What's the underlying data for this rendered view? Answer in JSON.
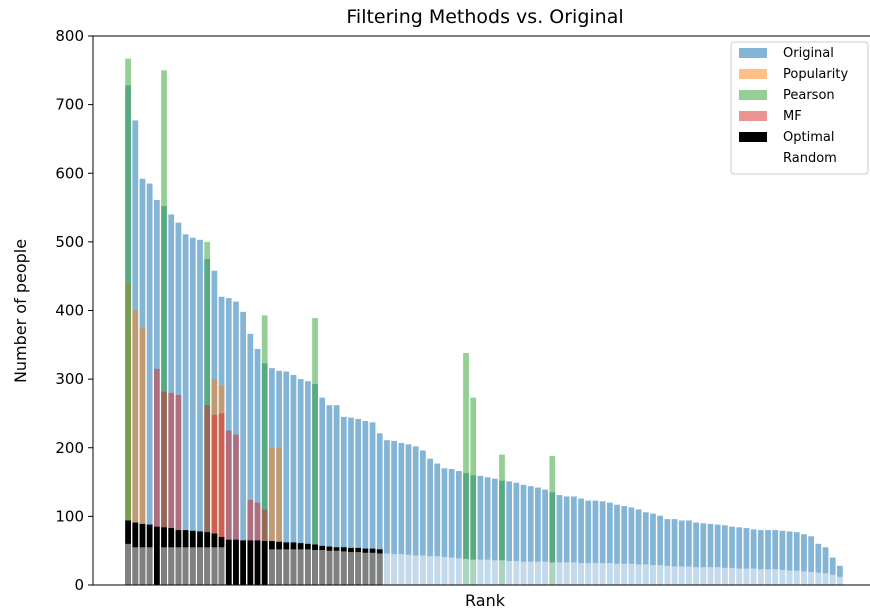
{
  "chart_data": {
    "type": "bar",
    "title": "Filtering Methods vs. Original",
    "xlabel": "Rank",
    "ylabel": "Number of people",
    "ylim": [
      0,
      800
    ],
    "yticks": [
      0,
      100,
      200,
      300,
      400,
      500,
      600,
      700,
      800
    ],
    "x_tick_labels": false,
    "grid": false,
    "legend": "top-right",
    "series": [
      {
        "name": "Original",
        "color": "#1f77b4",
        "opacity": 0.55,
        "values": [
          728,
          677,
          592,
          585,
          561,
          552,
          540,
          528,
          511,
          506,
          503,
          475,
          458,
          420,
          418,
          413,
          398,
          366,
          344,
          323,
          316,
          312,
          311,
          306,
          300,
          297,
          293,
          273,
          262,
          262,
          245,
          244,
          242,
          239,
          237,
          221,
          211,
          210,
          207,
          205,
          202,
          196,
          184,
          177,
          170,
          169,
          166,
          163,
          160,
          159,
          157,
          155,
          152,
          151,
          149,
          146,
          144,
          142,
          139,
          135,
          131,
          129,
          129,
          126,
          123,
          123,
          122,
          120,
          117,
          115,
          113,
          110,
          106,
          104,
          101,
          96,
          96,
          94,
          94,
          91,
          90,
          89,
          88,
          87,
          85,
          84,
          83,
          81,
          80,
          80,
          80,
          79,
          78,
          77,
          74,
          71,
          60,
          55,
          40,
          28
        ]
      },
      {
        "name": "Popularity",
        "color": "#ff7f0e",
        "opacity": 0.5,
        "values": [
          440,
          400,
          375,
          0,
          0,
          0,
          0,
          0,
          0,
          0,
          0,
          0,
          300,
          290,
          0,
          0,
          0,
          0,
          0,
          0,
          200,
          200,
          0,
          0,
          0,
          0,
          0,
          0,
          0,
          0,
          0,
          0,
          0,
          0,
          0,
          0,
          0,
          0,
          0,
          0,
          0,
          0,
          0,
          0,
          0,
          0,
          0,
          0,
          0,
          0,
          0,
          0,
          0,
          0,
          0,
          0,
          0,
          0,
          0,
          0,
          0,
          0,
          0,
          0,
          0,
          0,
          0,
          0,
          0,
          0,
          0,
          0,
          0,
          0,
          0,
          0,
          0,
          0,
          0,
          0,
          0,
          0,
          0,
          0,
          0,
          0,
          0,
          0,
          0,
          0,
          0,
          0,
          0,
          0,
          0,
          0,
          0,
          0,
          0,
          0
        ]
      },
      {
        "name": "Pearson",
        "color": "#2ca02c",
        "opacity": 0.5,
        "values": [
          767,
          0,
          0,
          0,
          0,
          750,
          0,
          0,
          0,
          0,
          0,
          500,
          0,
          0,
          0,
          0,
          0,
          0,
          0,
          393,
          0,
          0,
          0,
          0,
          0,
          0,
          389,
          0,
          0,
          0,
          0,
          0,
          0,
          0,
          0,
          0,
          0,
          0,
          0,
          0,
          0,
          0,
          0,
          0,
          0,
          0,
          0,
          338,
          273,
          0,
          0,
          0,
          190,
          0,
          0,
          0,
          0,
          0,
          0,
          188,
          0,
          0,
          0,
          0,
          0,
          0,
          0,
          0,
          0,
          0,
          0,
          0,
          0,
          0,
          0,
          0,
          0,
          0,
          0,
          0,
          0,
          0,
          0,
          0,
          0,
          0,
          0,
          0,
          0,
          0,
          0,
          0,
          0,
          0,
          0,
          0,
          0,
          0,
          0,
          0
        ]
      },
      {
        "name": "MF",
        "color": "#d62728",
        "opacity": 0.5,
        "values": [
          0,
          0,
          0,
          0,
          315,
          282,
          280,
          277,
          0,
          0,
          0,
          262,
          248,
          250,
          225,
          219,
          0,
          124,
          120,
          110,
          0,
          0,
          0,
          0,
          0,
          0,
          0,
          0,
          0,
          0,
          0,
          0,
          0,
          0,
          0,
          0,
          0,
          0,
          0,
          0,
          0,
          0,
          0,
          0,
          0,
          0,
          0,
          0,
          0,
          0,
          0,
          0,
          0,
          0,
          0,
          0,
          0,
          0,
          0,
          0,
          0,
          0,
          0,
          0,
          0,
          0,
          0,
          0,
          0,
          0,
          0,
          0,
          0,
          0,
          0,
          0,
          0,
          0,
          0,
          0,
          0,
          0,
          0,
          0,
          0,
          0,
          0,
          0,
          0,
          0,
          0,
          0,
          0,
          0,
          0,
          0,
          0,
          0,
          0,
          0
        ]
      },
      {
        "name": "Optimal",
        "color": "#000000",
        "opacity": 1.0,
        "values": [
          94,
          91,
          89,
          88,
          85,
          84,
          83,
          80,
          80,
          79,
          78,
          77,
          75,
          70,
          66,
          66,
          65,
          65,
          65,
          64,
          64,
          63,
          62,
          62,
          61,
          60,
          59,
          57,
          56,
          55,
          55,
          54,
          54,
          53,
          53,
          52,
          0,
          0,
          0,
          0,
          0,
          0,
          0,
          0,
          0,
          0,
          0,
          0,
          0,
          0,
          0,
          0,
          0,
          0,
          0,
          0,
          0,
          0,
          0,
          0,
          0,
          0,
          0,
          0,
          0,
          0,
          0,
          0,
          0,
          0,
          0,
          0,
          0,
          0,
          0,
          0,
          0,
          0,
          0,
          0,
          0,
          0,
          0,
          0,
          0,
          0,
          0,
          0,
          0,
          0,
          0,
          0,
          0,
          0,
          0,
          0,
          0,
          0,
          0,
          0
        ]
      },
      {
        "name": "Random",
        "color": "#ffffff",
        "opacity": 0.5,
        "values": [
          60,
          55,
          55,
          55,
          0,
          55,
          55,
          55,
          55,
          55,
          55,
          55,
          55,
          55,
          0,
          0,
          0,
          0,
          0,
          0,
          52,
          52,
          52,
          52,
          52,
          52,
          51,
          51,
          50,
          50,
          49,
          48,
          48,
          47,
          47,
          46,
          46,
          45,
          45,
          44,
          43,
          43,
          42,
          42,
          41,
          40,
          39,
          38,
          37,
          37,
          37,
          36,
          36,
          35,
          35,
          34,
          34,
          34,
          34,
          33,
          33,
          33,
          33,
          32,
          32,
          32,
          32,
          32,
          31,
          31,
          31,
          30,
          30,
          29,
          29,
          28,
          27,
          27,
          27,
          26,
          26,
          26,
          26,
          25,
          25,
          24,
          24,
          24,
          23,
          23,
          23,
          22,
          21,
          21,
          20,
          19,
          18,
          17,
          15,
          12
        ]
      }
    ]
  }
}
